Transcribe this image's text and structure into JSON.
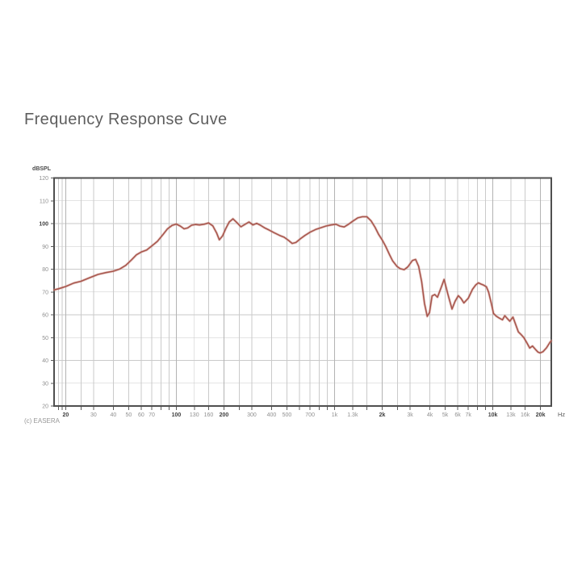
{
  "header": {
    "title": "Frequency Response Cuve"
  },
  "chart": {
    "y_axis_title": "dBSPL",
    "x_axis_unit": "Hz",
    "credit": "(c) EASERA",
    "colors": {
      "curve": "#a8574e",
      "curve_halo": "#d09a91",
      "grid": "#cacaca",
      "grid_major": "#b3b3b3",
      "border": "#4f4f4f",
      "label": "#8f8f8f",
      "label_bold": "#3f3f3f"
    }
  },
  "chart_data": {
    "type": "line",
    "title": "Frequency Response Cuve",
    "xlabel": "Hz",
    "ylabel": "dBSPL",
    "x_scale": "log",
    "xlim": [
      16.9,
      23400
    ],
    "ylim": [
      20,
      120
    ],
    "grid": true,
    "legend": "none",
    "y_ticks": [
      {
        "v": 120,
        "bold": false
      },
      {
        "v": 110,
        "bold": false
      },
      {
        "v": 100,
        "bold": true
      },
      {
        "v": 90,
        "bold": false
      },
      {
        "v": 80,
        "bold": false
      },
      {
        "v": 70,
        "bold": false
      },
      {
        "v": 60,
        "bold": false
      },
      {
        "v": 50,
        "bold": false
      },
      {
        "v": 40,
        "bold": false
      },
      {
        "v": 30,
        "bold": false
      },
      {
        "v": 20,
        "bold": false
      }
    ],
    "x_ticks": [
      {
        "f": 20,
        "label": "20",
        "bold": true
      },
      {
        "f": 30,
        "label": "30",
        "bold": false
      },
      {
        "f": 40,
        "label": "40",
        "bold": false
      },
      {
        "f": 50,
        "label": "50",
        "bold": false
      },
      {
        "f": 60,
        "label": "60",
        "bold": false
      },
      {
        "f": 70,
        "label": "70",
        "bold": false
      },
      {
        "f": 100,
        "label": "100",
        "bold": true
      },
      {
        "f": 130,
        "label": "130",
        "bold": false
      },
      {
        "f": 160,
        "label": "160",
        "bold": false
      },
      {
        "f": 200,
        "label": "200",
        "bold": true
      },
      {
        "f": 300,
        "label": "300",
        "bold": false
      },
      {
        "f": 400,
        "label": "400",
        "bold": false
      },
      {
        "f": 500,
        "label": "500",
        "bold": false
      },
      {
        "f": 700,
        "label": "700",
        "bold": false
      },
      {
        "f": 1000,
        "label": "1k",
        "bold": false
      },
      {
        "f": 1300,
        "label": "1.3k",
        "bold": false
      },
      {
        "f": 2000,
        "label": "2k",
        "bold": true
      },
      {
        "f": 3000,
        "label": "3k",
        "bold": false
      },
      {
        "f": 4000,
        "label": "4k",
        "bold": false
      },
      {
        "f": 5000,
        "label": "5k",
        "bold": false
      },
      {
        "f": 6000,
        "label": "6k",
        "bold": false
      },
      {
        "f": 7000,
        "label": "7k",
        "bold": false
      },
      {
        "f": 10000,
        "label": "10k",
        "bold": true
      },
      {
        "f": 13000,
        "label": "13k",
        "bold": false
      },
      {
        "f": 16000,
        "label": "16k",
        "bold": false
      },
      {
        "f": 20000,
        "label": "20k",
        "bold": true
      }
    ],
    "x_gridlines": [
      18,
      19,
      20,
      25,
      30,
      40,
      50,
      60,
      70,
      80,
      90,
      100,
      130,
      160,
      200,
      250,
      300,
      400,
      500,
      600,
      700,
      800,
      900,
      1000,
      1300,
      1600,
      2000,
      2500,
      3000,
      4000,
      5000,
      6000,
      7000,
      8000,
      9000,
      10000,
      13000,
      16000,
      20000
    ],
    "x_major_gridlines": [
      20,
      100,
      200,
      1000,
      2000,
      10000,
      20000
    ],
    "series": [
      {
        "name": "frequency-response",
        "color": "#a8574e",
        "x": [
          16.9,
          18,
          20,
          22.5,
          25,
          28,
          32,
          36,
          40,
          44,
          48,
          52,
          56,
          60,
          65,
          70,
          76,
          82,
          88,
          94,
          100,
          106,
          112,
          118,
          125,
          132,
          140,
          150,
          160,
          170,
          180,
          187,
          196,
          206,
          216,
          228,
          241,
          256,
          271,
          288,
          305,
          322,
          340,
          360,
          385,
          415,
          450,
          480,
          510,
          540,
          570,
          610,
          650,
          700,
          760,
          820,
          880,
          950,
          1020,
          1080,
          1150,
          1220,
          1300,
          1400,
          1500,
          1600,
          1700,
          1800,
          1900,
          2000,
          2100,
          2220,
          2330,
          2480,
          2600,
          2750,
          2900,
          3100,
          3250,
          3400,
          3550,
          3700,
          3850,
          3980,
          4130,
          4300,
          4470,
          4740,
          4920,
          5200,
          5520,
          5770,
          6050,
          6300,
          6560,
          7000,
          7440,
          7800,
          8100,
          8400,
          8750,
          9100,
          9400,
          9800,
          10100,
          10500,
          11000,
          11500,
          11900,
          12400,
          12800,
          13400,
          13900,
          14500,
          15100,
          15700,
          16400,
          17100,
          17800,
          18600,
          19300,
          19900,
          20700,
          21800,
          23000,
          23400
        ],
        "y": [
          70.9,
          71.4,
          72.4,
          73.9,
          74.7,
          76.1,
          77.7,
          78.5,
          79.1,
          80.1,
          81.7,
          84,
          86.3,
          87.5,
          88.4,
          90.2,
          92.2,
          95,
          97.7,
          99.2,
          99.8,
          98.9,
          97.7,
          98.1,
          99.3,
          99.6,
          99.4,
          99.7,
          100.3,
          99,
          95.8,
          92.9,
          94.6,
          98,
          100.7,
          102.1,
          100.5,
          98.6,
          99.6,
          100.7,
          99.4,
          100.1,
          99.3,
          98.2,
          97.2,
          96,
          94.8,
          94,
          92.7,
          91.3,
          91.7,
          93.4,
          94.8,
          96.2,
          97.4,
          98.2,
          98.9,
          99.4,
          99.7,
          98.9,
          98.5,
          99.6,
          101,
          102.5,
          103,
          103,
          101.2,
          98.4,
          95.2,
          92.8,
          90.1,
          86.5,
          83.6,
          81.2,
          80.2,
          79.8,
          81,
          83.8,
          84.3,
          81.2,
          74.5,
          65,
          59.3,
          61,
          68.3,
          68.9,
          67.7,
          72.4,
          75.5,
          69,
          62.5,
          65.9,
          68.4,
          67.1,
          65.2,
          67.3,
          71.2,
          73.1,
          74,
          73.5,
          73,
          72.3,
          70,
          64.7,
          60.6,
          59.4,
          58.5,
          57.8,
          59.6,
          58.2,
          57.2,
          59,
          56,
          52.5,
          51.3,
          50,
          47.7,
          45.4,
          46.3,
          44.8,
          43.6,
          43.3,
          43.8,
          45.5,
          48,
          48.6
        ]
      }
    ]
  }
}
